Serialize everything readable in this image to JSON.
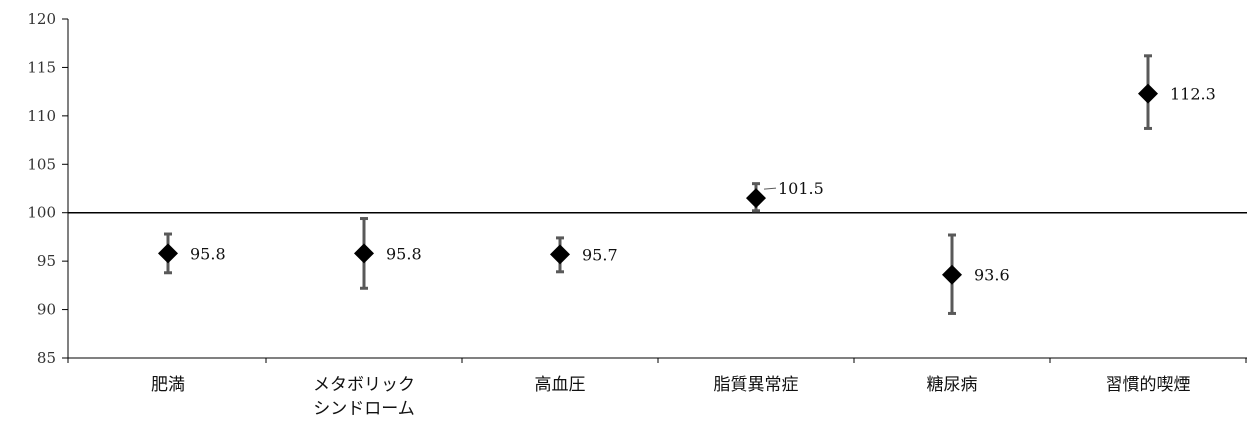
{
  "chart_data": {
    "type": "scatter",
    "categories": [
      "肥満",
      "メタボリック\nシンドローム",
      "高血圧",
      "脂質異常症",
      "糖尿病",
      "習慣的喫煙"
    ],
    "values": [
      95.8,
      95.8,
      95.7,
      101.5,
      93.6,
      112.3
    ],
    "data_labels": [
      "95.8",
      "95.8",
      "95.7",
      "101.5",
      "93.6",
      "112.3"
    ],
    "error_low": [
      93.8,
      92.2,
      93.9,
      100.2,
      89.6,
      108.7
    ],
    "error_high": [
      97.8,
      99.4,
      97.4,
      103.0,
      97.7,
      116.2
    ],
    "ylim": [
      85,
      120
    ],
    "yticks": [
      "85",
      "90",
      "95",
      "100",
      "105",
      "110",
      "115",
      "120"
    ],
    "reference_line": 100,
    "marker": "diamond",
    "grid": false,
    "title": "",
    "xlabel": "",
    "ylabel": "",
    "colors": {
      "marker": "#000000",
      "error_bar": "#595959",
      "axis": "#000000"
    }
  }
}
